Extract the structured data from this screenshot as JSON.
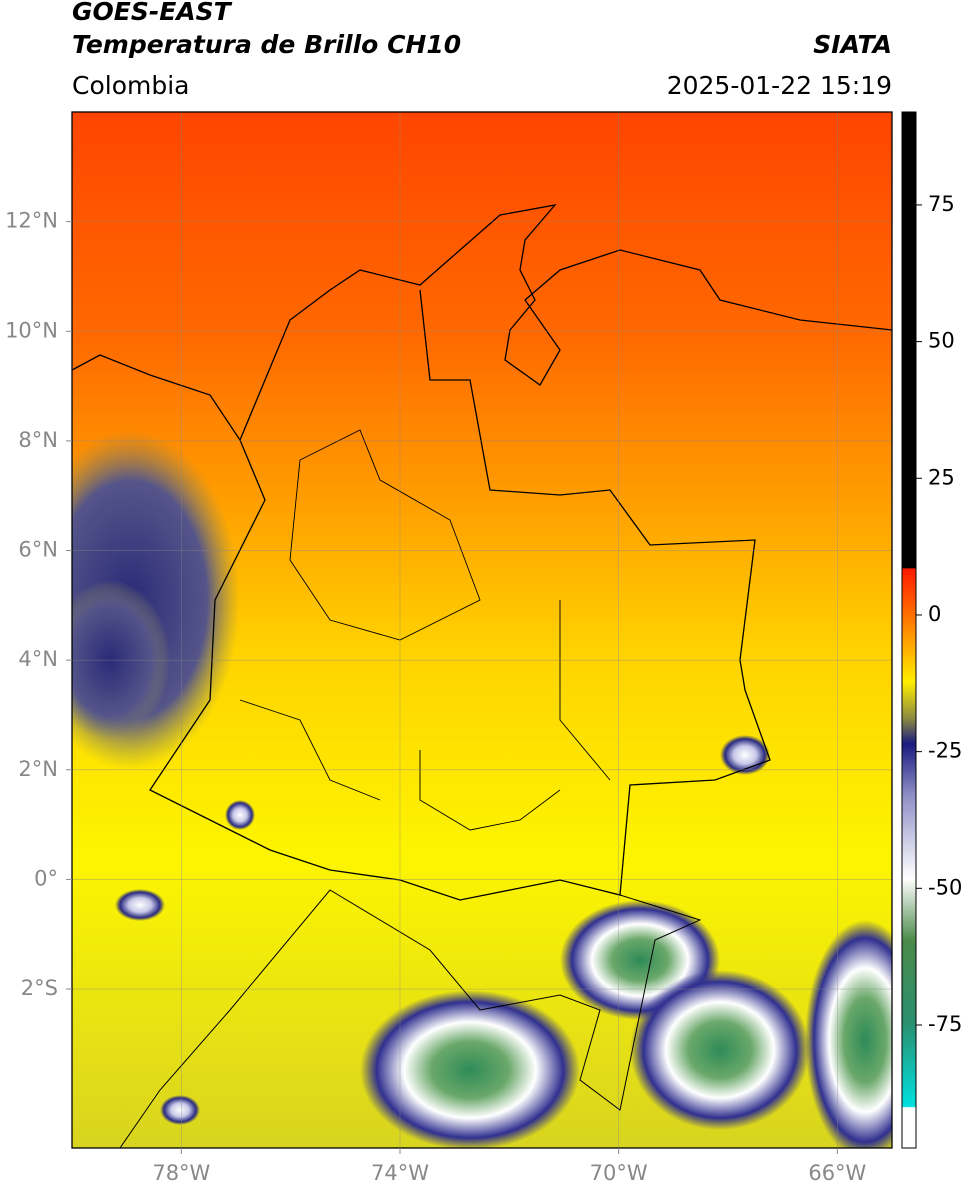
{
  "header": {
    "title": "GOES-EAST",
    "subtitle": "Temperatura de Brillo CH10",
    "region": "Colombia",
    "source": "SIATA",
    "timestamp": "2025-01-22 15:19"
  },
  "map": {
    "lon_lim": [
      -80,
      -65
    ],
    "lat_lim": [
      -4.9,
      14
    ],
    "lon_ticks": [
      {
        "value": -78,
        "label": "78°W"
      },
      {
        "value": -74,
        "label": "74°W"
      },
      {
        "value": -70,
        "label": "70°W"
      },
      {
        "value": -66,
        "label": "66°W"
      }
    ],
    "lat_ticks": [
      {
        "value": 12,
        "label": "12°N"
      },
      {
        "value": 10,
        "label": "10°N"
      },
      {
        "value": 8,
        "label": "8°N"
      },
      {
        "value": 6,
        "label": "6°N"
      },
      {
        "value": 4,
        "label": "4°N"
      },
      {
        "value": 2,
        "label": "2°N"
      },
      {
        "value": 0,
        "label": "0°"
      },
      {
        "value": -2,
        "label": "2°S"
      }
    ]
  },
  "colorbar": {
    "lim": [
      -97.5,
      92
    ],
    "ticks": [
      75,
      50,
      25,
      0,
      -25,
      -50,
      -75
    ]
  }
}
